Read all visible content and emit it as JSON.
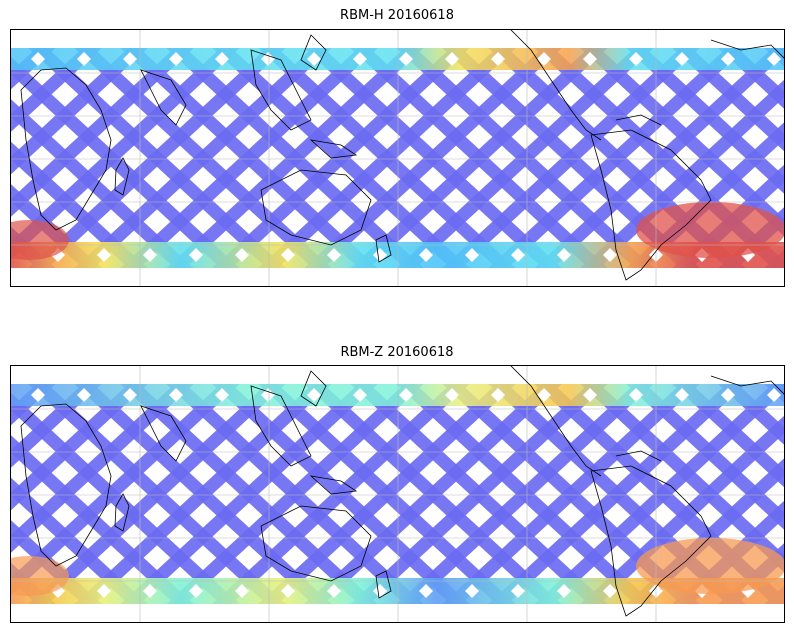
{
  "panels": [
    {
      "title": "RBM-H 20160618",
      "colors": {
        "base": "#6b6bf2",
        "mid": "#4fc3f7",
        "hot_south": "#e0524a",
        "warm": "#f7a04a",
        "yellow": "#f2e25a",
        "cyan": "#5fe0f0"
      }
    },
    {
      "title": "RBM-Z 20160618",
      "colors": {
        "base": "#6b6bf2",
        "mid": "#5f9ef5",
        "hot_south": "#f79a52",
        "warm": "#f7c64a",
        "yellow": "#e8f07a",
        "cyan": "#7ff2d8"
      }
    }
  ]
}
